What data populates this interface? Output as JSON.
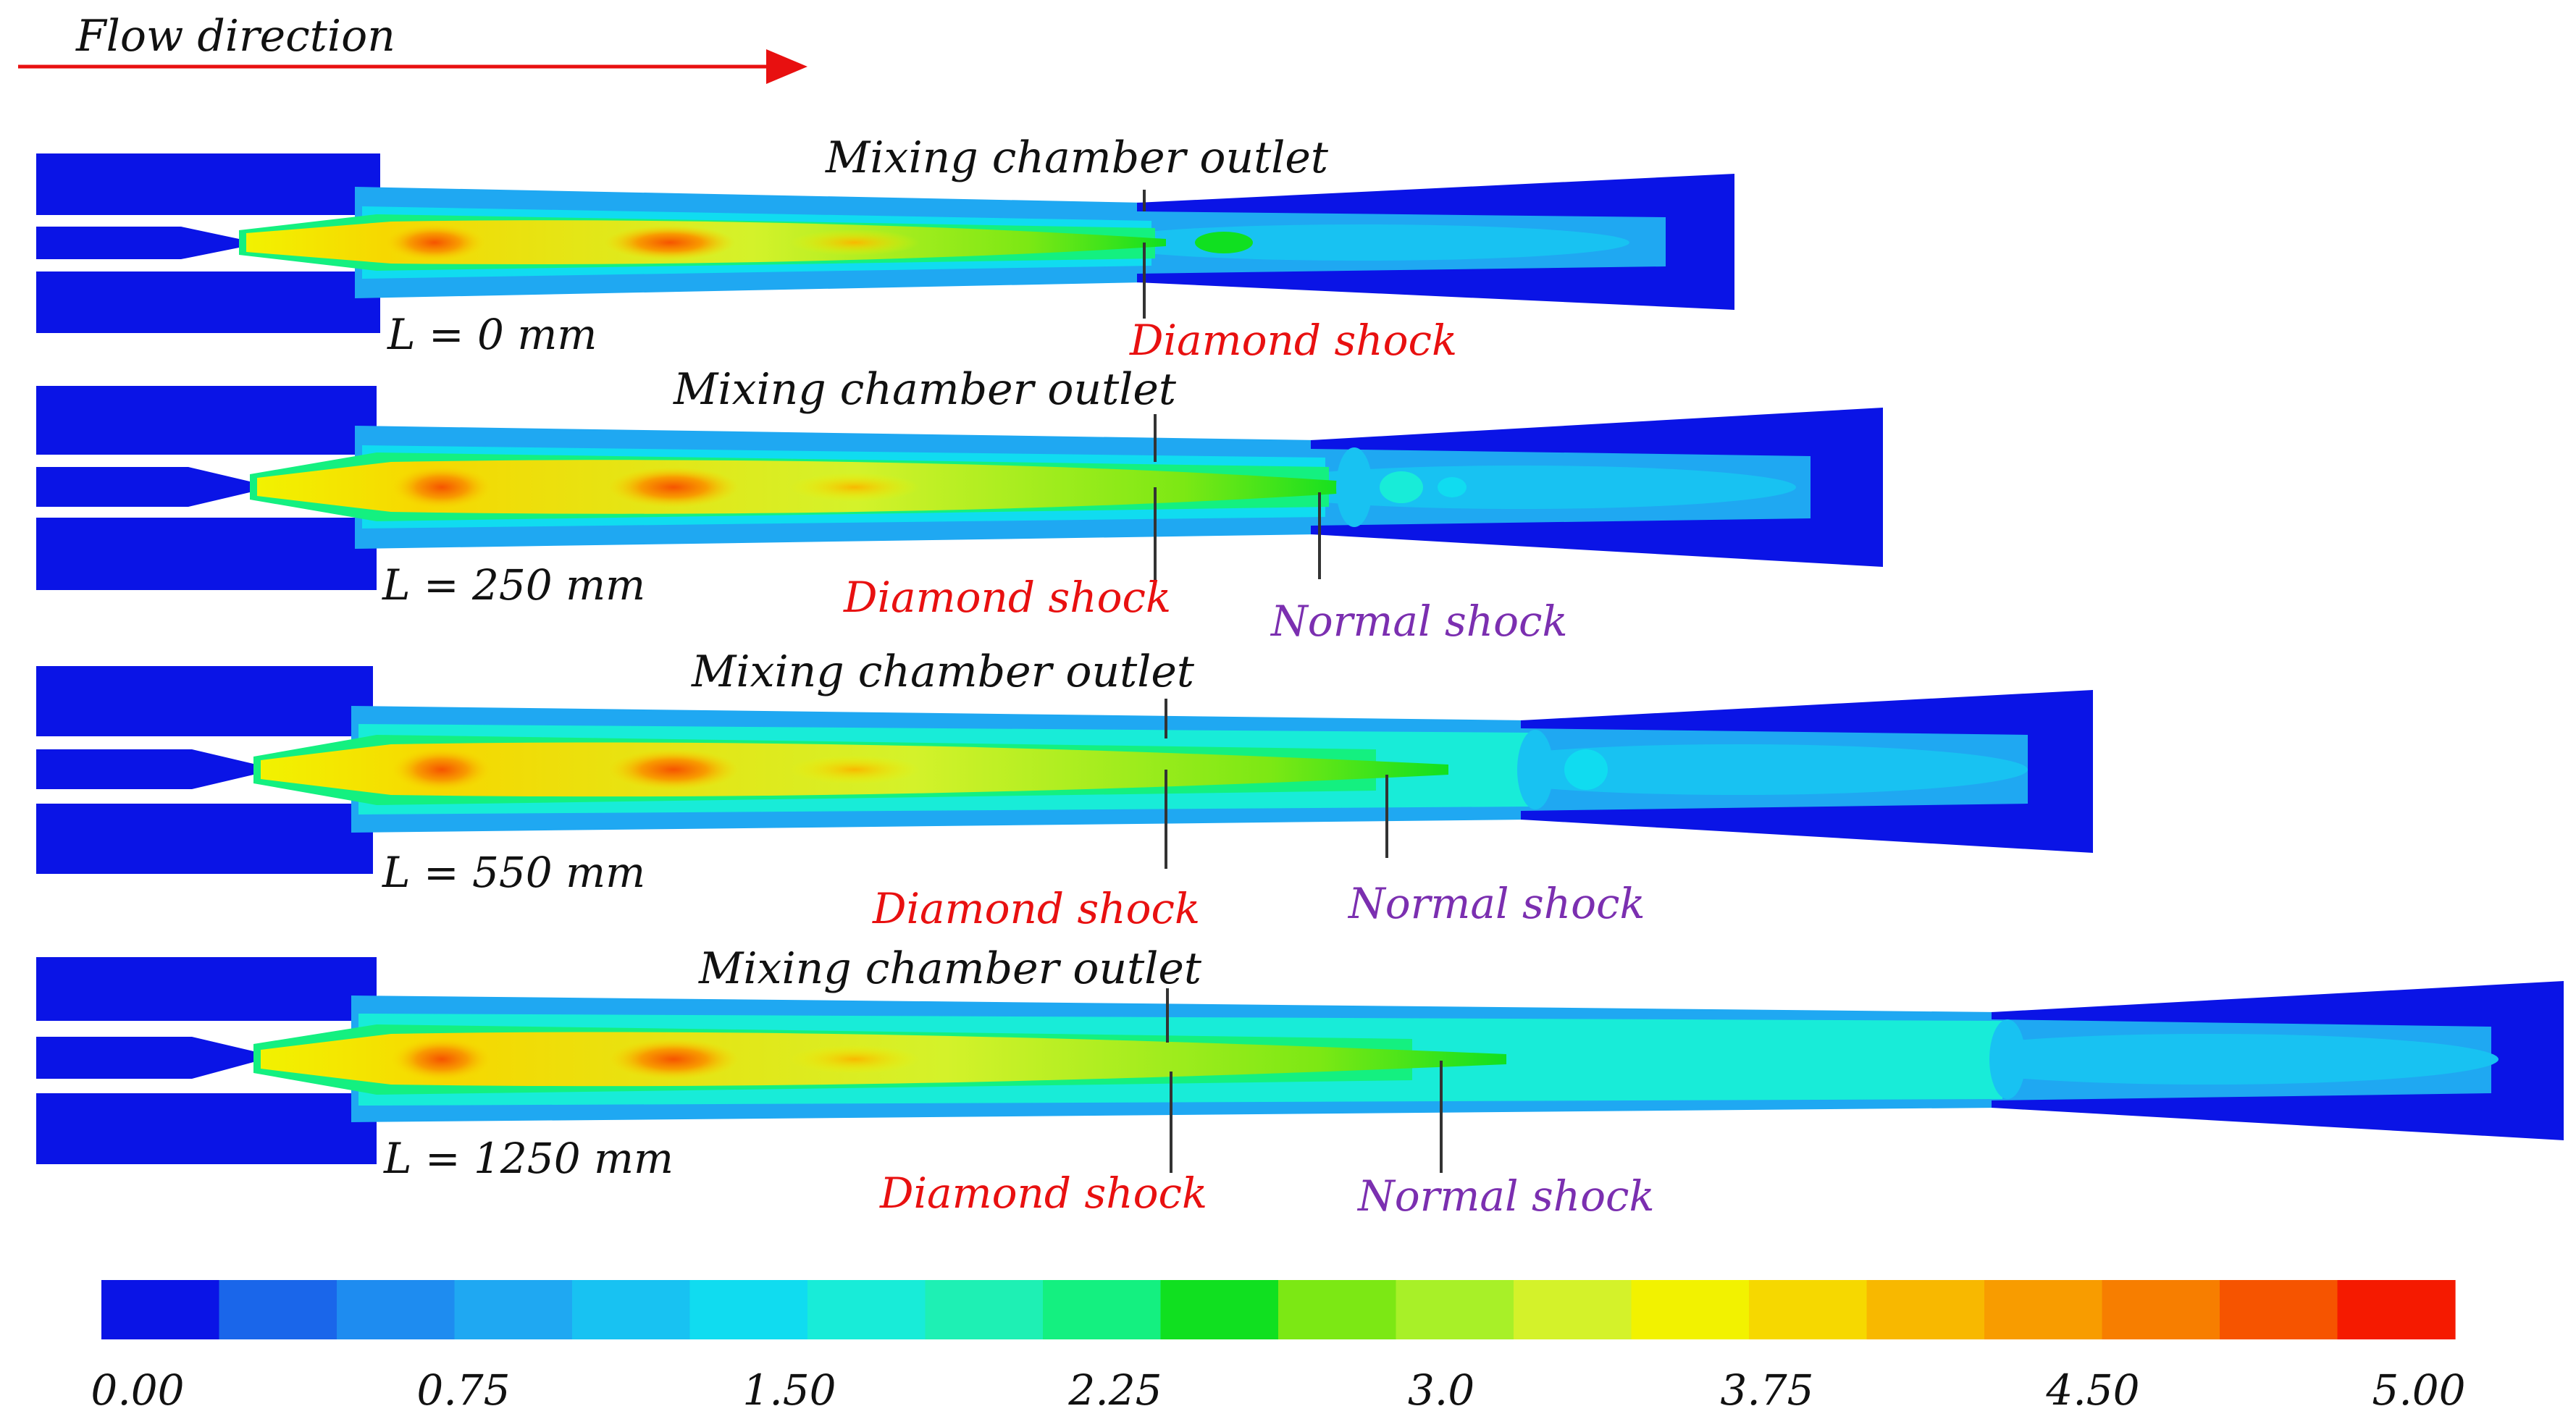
{
  "figure": {
    "flow_direction_label": "Flow direction",
    "colors": {
      "arrow": "#e81010",
      "diamond_label": "#e81010",
      "normal_label": "#7b2fb0",
      "black_label": "#111111",
      "marker_line": "#333333",
      "wall_blue": "#0a14e6"
    },
    "panels": [
      {
        "length_label": "L = 0 mm",
        "mixing_label": "Mixing chamber outlet",
        "diamond_label": "Diamond shock",
        "normal_label": ""
      },
      {
        "length_label": "L = 250 mm",
        "mixing_label": "Mixing chamber outlet",
        "diamond_label": "Diamond shock",
        "normal_label": "Normal shock"
      },
      {
        "length_label": "L = 550 mm",
        "mixing_label": "Mixing chamber outlet",
        "diamond_label": "Diamond shock",
        "normal_label": "Normal shock"
      },
      {
        "length_label": "L = 1250 mm",
        "mixing_label": "Mixing chamber outlet",
        "diamond_label": "Diamond shock",
        "normal_label": "Normal shock"
      }
    ],
    "colorbar": {
      "min": 0.0,
      "max": 5.0,
      "tick_labels": [
        "0.00",
        "0.75",
        "1.50",
        "2.25",
        "3.0",
        "3.75",
        "4.50",
        "5.00"
      ],
      "colors": [
        "#0a14e6",
        "#1a66ea",
        "#1e8cf0",
        "#1fa8f2",
        "#18c2f2",
        "#10dcf0",
        "#18ecd8",
        "#1ef0b4",
        "#14f080",
        "#10e020",
        "#7ce814",
        "#a8f028",
        "#d4f22a",
        "#f2f200",
        "#f6d800",
        "#f8b800",
        "#f89c00",
        "#f77e00",
        "#f65400",
        "#f51a00"
      ]
    }
  }
}
